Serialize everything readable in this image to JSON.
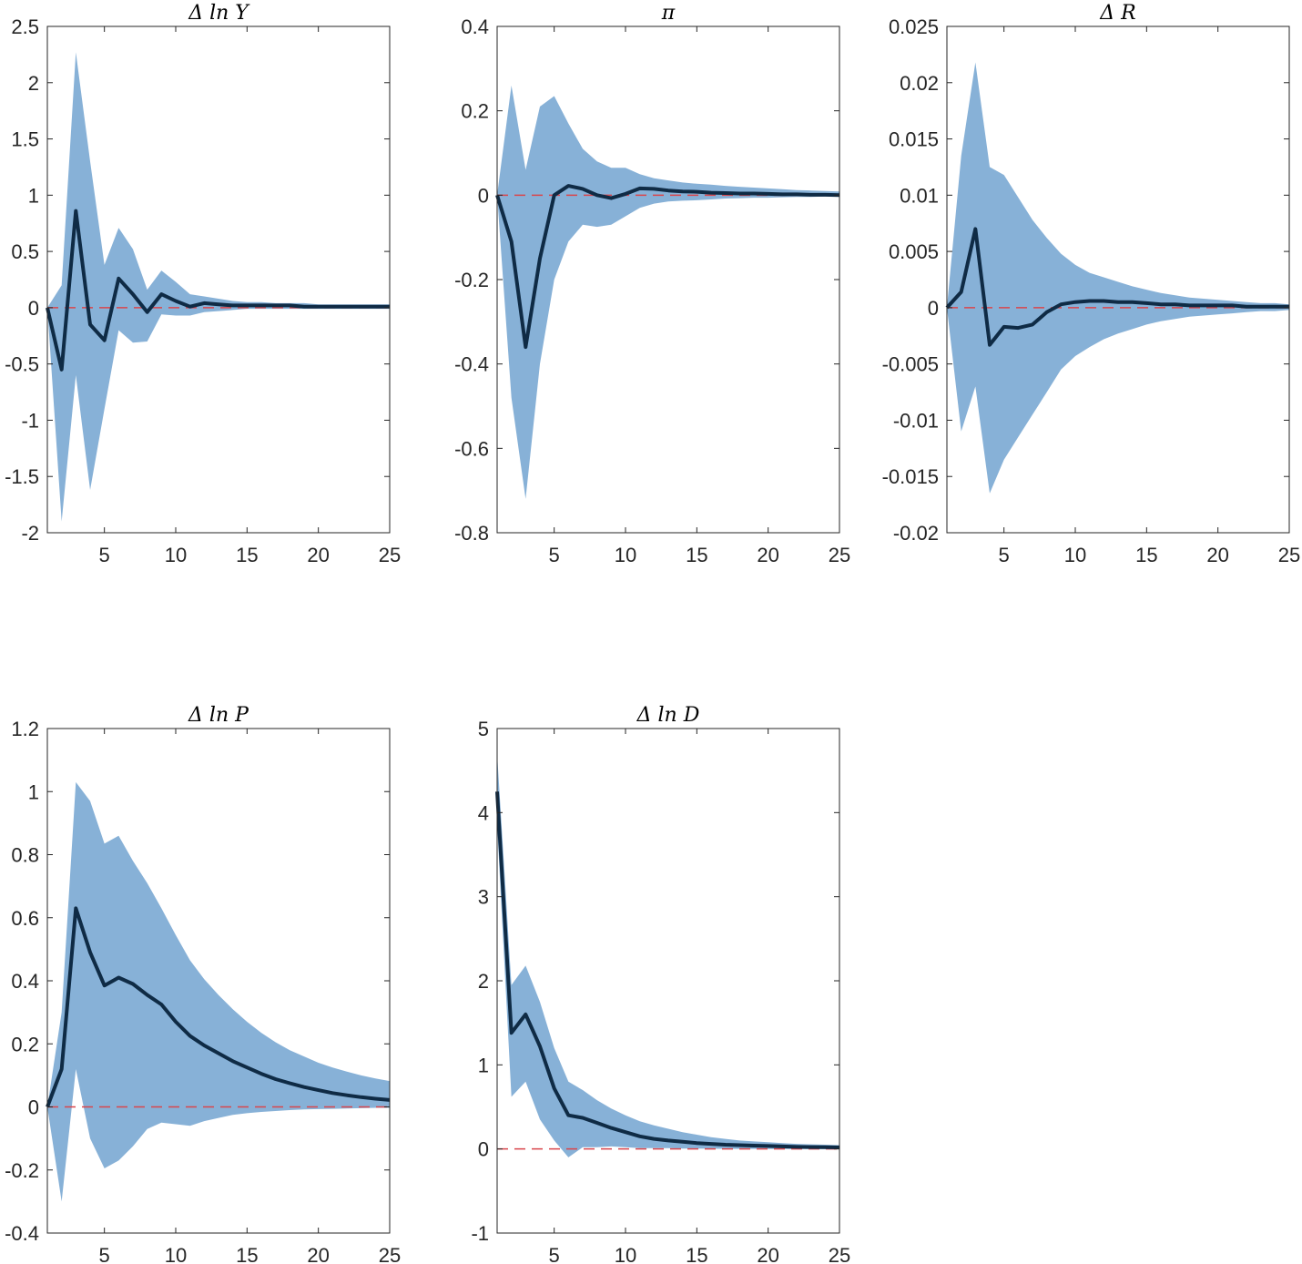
{
  "chart_data": [
    {
      "type": "line",
      "title": "Δ ln Y",
      "xlabel": "",
      "ylabel": "",
      "xlim": [
        1,
        25
      ],
      "ylim": [
        -2,
        2.5
      ],
      "xticks": [
        5,
        10,
        15,
        20,
        25
      ],
      "yticks": [
        -2,
        -1.5,
        -1,
        -0.5,
        0,
        0.5,
        1,
        1.5,
        2,
        2.5
      ],
      "ytick_labels": [
        "-2",
        "-1.5",
        "-1",
        "-0.5",
        "0",
        "0.5",
        "1",
        "1.5",
        "2",
        "2.5"
      ],
      "grid": false,
      "zero_line": 0,
      "x": [
        1,
        2,
        3,
        4,
        5,
        6,
        7,
        8,
        9,
        10,
        11,
        12,
        13,
        14,
        15,
        16,
        17,
        18,
        19,
        20,
        21,
        22,
        23,
        24,
        25
      ],
      "series": [
        {
          "role": "median",
          "values": [
            0,
            -0.55,
            0.86,
            -0.15,
            -0.29,
            0.26,
            0.12,
            -0.04,
            0.12,
            0.06,
            0.01,
            0.04,
            0.03,
            0.02,
            0.02,
            0.02,
            0.02,
            0.02,
            0.01,
            0.01,
            0.01,
            0.01,
            0.01,
            0.01,
            0.01
          ]
        },
        {
          "role": "lower",
          "values": [
            0,
            -1.9,
            -0.6,
            -1.62,
            -0.9,
            -0.2,
            -0.31,
            -0.3,
            -0.06,
            -0.07,
            -0.07,
            -0.04,
            -0.03,
            -0.02,
            -0.01,
            -0.01,
            -0.01,
            -0.01,
            -0.01,
            -0.01,
            -0.01,
            -0.01,
            -0.01,
            -0.01,
            -0.01
          ]
        },
        {
          "role": "upper",
          "values": [
            0,
            0.2,
            2.27,
            1.3,
            0.38,
            0.71,
            0.52,
            0.16,
            0.33,
            0.23,
            0.12,
            0.1,
            0.08,
            0.06,
            0.05,
            0.05,
            0.04,
            0.04,
            0.04,
            0.03,
            0.03,
            0.03,
            0.03,
            0.03,
            0.03
          ]
        }
      ]
    },
    {
      "type": "line",
      "title": "π",
      "xlabel": "",
      "ylabel": "",
      "xlim": [
        1,
        25
      ],
      "ylim": [
        -0.8,
        0.4
      ],
      "xticks": [
        5,
        10,
        15,
        20,
        25
      ],
      "yticks": [
        -0.8,
        -0.6,
        -0.4,
        -0.2,
        0,
        0.2,
        0.4
      ],
      "ytick_labels": [
        "-0.8",
        "-0.6",
        "-0.4",
        "-0.2",
        "0",
        "0.2",
        "0.4"
      ],
      "grid": false,
      "zero_line": 0,
      "x": [
        1,
        2,
        3,
        4,
        5,
        6,
        7,
        8,
        9,
        10,
        11,
        12,
        13,
        14,
        15,
        16,
        17,
        18,
        19,
        20,
        21,
        22,
        23,
        24,
        25
      ],
      "series": [
        {
          "role": "median",
          "values": [
            0,
            -0.11,
            -0.36,
            -0.15,
            0,
            0.022,
            0.015,
            0.0,
            -0.007,
            0.003,
            0.016,
            0.015,
            0.011,
            0.009,
            0.008,
            0.006,
            0.005,
            0.004,
            0.004,
            0.003,
            0.002,
            0.002,
            0.001,
            0.001,
            0.0
          ]
        },
        {
          "role": "lower",
          "values": [
            0,
            -0.48,
            -0.72,
            -0.4,
            -0.2,
            -0.11,
            -0.07,
            -0.075,
            -0.07,
            -0.05,
            -0.03,
            -0.02,
            -0.015,
            -0.013,
            -0.012,
            -0.01,
            -0.008,
            -0.007,
            -0.006,
            -0.006,
            -0.005,
            -0.004,
            -0.004,
            -0.003,
            -0.003
          ]
        },
        {
          "role": "upper",
          "values": [
            0,
            0.26,
            0.06,
            0.21,
            0.235,
            0.17,
            0.11,
            0.08,
            0.065,
            0.065,
            0.05,
            0.04,
            0.035,
            0.03,
            0.027,
            0.025,
            0.022,
            0.02,
            0.018,
            0.016,
            0.014,
            0.012,
            0.011,
            0.01,
            0.009
          ]
        }
      ]
    },
    {
      "type": "line",
      "title": "Δ R",
      "xlabel": "",
      "ylabel": "",
      "xlim": [
        1,
        25
      ],
      "ylim": [
        -0.02,
        0.025
      ],
      "xticks": [
        5,
        10,
        15,
        20,
        25
      ],
      "yticks": [
        -0.02,
        -0.015,
        -0.01,
        -0.005,
        0,
        0.005,
        0.01,
        0.015,
        0.02,
        0.025
      ],
      "ytick_labels": [
        "-0.02",
        "-0.015",
        "-0.01",
        "-0.005",
        "0",
        "0.005",
        "0.01",
        "0.015",
        "0.02",
        "0.025"
      ],
      "grid": false,
      "zero_line": 0,
      "x": [
        1,
        2,
        3,
        4,
        5,
        6,
        7,
        8,
        9,
        10,
        11,
        12,
        13,
        14,
        15,
        16,
        17,
        18,
        19,
        20,
        21,
        22,
        23,
        24,
        25
      ],
      "series": [
        {
          "role": "median",
          "values": [
            0,
            0.0014,
            0.007,
            -0.0033,
            -0.0017,
            -0.0018,
            -0.0015,
            -0.0004,
            0.0003,
            0.0005,
            0.0006,
            0.0006,
            0.0005,
            0.0005,
            0.0004,
            0.0003,
            0.0003,
            0.0002,
            0.0002,
            0.0002,
            0.0002,
            0.0001,
            0.0001,
            0.0001,
            0.0001
          ]
        },
        {
          "role": "lower",
          "values": [
            0,
            -0.011,
            -0.007,
            -0.0165,
            -0.0135,
            -0.0115,
            -0.0095,
            -0.0075,
            -0.0055,
            -0.0043,
            -0.0035,
            -0.0028,
            -0.0023,
            -0.0019,
            -0.0015,
            -0.0012,
            -0.001,
            -0.0008,
            -0.0007,
            -0.0006,
            -0.0005,
            -0.0004,
            -0.0003,
            -0.0003,
            -0.0002
          ]
        },
        {
          "role": "upper",
          "values": [
            0,
            0.0135,
            0.0218,
            0.0125,
            0.0118,
            0.0098,
            0.0078,
            0.0062,
            0.0048,
            0.0038,
            0.0031,
            0.0027,
            0.0023,
            0.0019,
            0.0016,
            0.0013,
            0.0011,
            0.0009,
            0.0008,
            0.0007,
            0.0006,
            0.0005,
            0.0004,
            0.0004,
            0.0003
          ]
        }
      ]
    },
    {
      "type": "line",
      "title": "Δ ln P",
      "xlabel": "",
      "ylabel": "",
      "xlim": [
        1,
        25
      ],
      "ylim": [
        -0.4,
        1.2
      ],
      "xticks": [
        5,
        10,
        15,
        20,
        25
      ],
      "yticks": [
        -0.4,
        -0.2,
        0,
        0.2,
        0.4,
        0.6,
        0.8,
        1,
        1.2
      ],
      "ytick_labels": [
        "-0.4",
        "-0.2",
        "0",
        "0.2",
        "0.4",
        "0.6",
        "0.8",
        "1",
        "1.2"
      ],
      "grid": false,
      "zero_line": 0,
      "x": [
        1,
        2,
        3,
        4,
        5,
        6,
        7,
        8,
        9,
        10,
        11,
        12,
        13,
        14,
        15,
        16,
        17,
        18,
        19,
        20,
        21,
        22,
        23,
        24,
        25
      ],
      "series": [
        {
          "role": "median",
          "values": [
            0,
            0.12,
            0.63,
            0.49,
            0.385,
            0.41,
            0.39,
            0.355,
            0.325,
            0.27,
            0.225,
            0.195,
            0.17,
            0.145,
            0.125,
            0.105,
            0.088,
            0.075,
            0.063,
            0.053,
            0.044,
            0.037,
            0.031,
            0.026,
            0.022
          ]
        },
        {
          "role": "lower",
          "values": [
            0,
            -0.3,
            0.12,
            -0.1,
            -0.195,
            -0.17,
            -0.125,
            -0.07,
            -0.05,
            -0.055,
            -0.06,
            -0.045,
            -0.035,
            -0.025,
            -0.02,
            -0.016,
            -0.013,
            -0.01,
            -0.008,
            -0.007,
            -0.006,
            -0.005,
            -0.004,
            -0.003,
            -0.003
          ]
        },
        {
          "role": "upper",
          "values": [
            0,
            0.3,
            1.03,
            0.97,
            0.835,
            0.86,
            0.78,
            0.71,
            0.63,
            0.545,
            0.465,
            0.405,
            0.355,
            0.31,
            0.27,
            0.235,
            0.205,
            0.18,
            0.16,
            0.14,
            0.125,
            0.112,
            0.1,
            0.09,
            0.082
          ]
        }
      ]
    },
    {
      "type": "line",
      "title": "Δ ln D",
      "xlabel": "",
      "ylabel": "",
      "xlim": [
        1,
        25
      ],
      "ylim": [
        -1,
        5
      ],
      "xticks": [
        5,
        10,
        15,
        20,
        25
      ],
      "yticks": [
        -1,
        0,
        1,
        2,
        3,
        4,
        5
      ],
      "ytick_labels": [
        "-1",
        "0",
        "1",
        "2",
        "3",
        "4",
        "5"
      ],
      "grid": false,
      "zero_line": 0,
      "x": [
        1,
        2,
        3,
        4,
        5,
        6,
        7,
        8,
        9,
        10,
        11,
        12,
        13,
        14,
        15,
        16,
        17,
        18,
        19,
        20,
        21,
        22,
        23,
        24,
        25
      ],
      "series": [
        {
          "role": "median",
          "values": [
            4.25,
            1.38,
            1.6,
            1.22,
            0.72,
            0.4,
            0.37,
            0.31,
            0.25,
            0.2,
            0.15,
            0.12,
            0.1,
            0.085,
            0.07,
            0.06,
            0.05,
            0.045,
            0.04,
            0.035,
            0.03,
            0.025,
            0.022,
            0.02,
            0.018
          ]
        },
        {
          "role": "lower",
          "values": [
            3.85,
            0.62,
            0.8,
            0.35,
            0.1,
            -0.1,
            0.02,
            0.02,
            0.03,
            0.02,
            0.01,
            0.01,
            0.01,
            0.005,
            0.005,
            0.003,
            0.002,
            0.001,
            0.001,
            0.001,
            0.0,
            0.0,
            0.0,
            0.0,
            0.0
          ]
        },
        {
          "role": "upper",
          "values": [
            4.7,
            1.95,
            2.18,
            1.75,
            1.2,
            0.8,
            0.7,
            0.58,
            0.48,
            0.4,
            0.33,
            0.28,
            0.24,
            0.2,
            0.17,
            0.14,
            0.12,
            0.1,
            0.09,
            0.08,
            0.07,
            0.06,
            0.055,
            0.05,
            0.045
          ]
        }
      ]
    }
  ],
  "colors": {
    "median_line": "#0f2b45",
    "band_fill": "#87b1d7",
    "zero_line": "#d9464c",
    "axis": "#262626"
  }
}
